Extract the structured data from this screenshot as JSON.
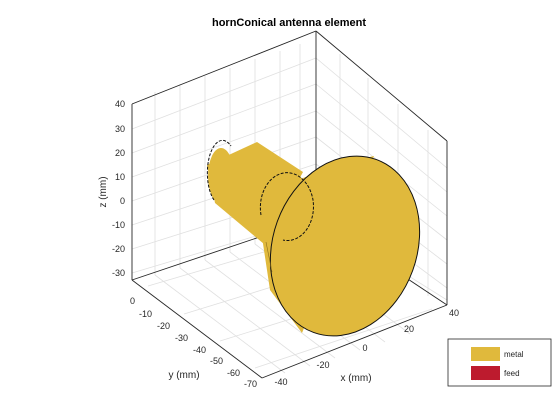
{
  "title": "hornConical antenna element",
  "axes": {
    "z": {
      "label": "z (mm)",
      "ticks": [
        "40",
        "30",
        "20",
        "10",
        "0",
        "-10",
        "-20",
        "-30"
      ]
    },
    "y": {
      "label": "y (mm)",
      "ticks": [
        "0",
        "-10",
        "-20",
        "-30",
        "-40",
        "-50",
        "-60",
        "-70"
      ]
    },
    "x": {
      "label": "x (mm)",
      "ticks": [
        "-40",
        "-20",
        "0",
        "20",
        "40"
      ]
    }
  },
  "colors": {
    "metal": "#E0B93C",
    "feed": "#BD1B2E"
  },
  "legend": {
    "placement": "bottom-right",
    "items": [
      {
        "label": "metal",
        "color": "#E0B93C"
      },
      {
        "label": "feed",
        "color": "#BD1B2E"
      }
    ]
  }
}
